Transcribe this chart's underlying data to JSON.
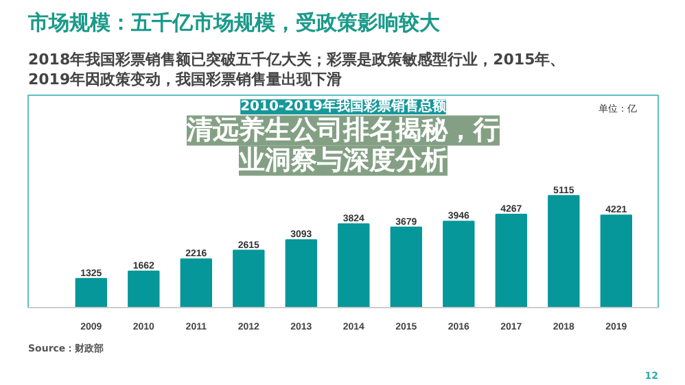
{
  "chart_data": {
    "type": "bar",
    "title": "市场规模：五千亿市场规模，受政策影响较大",
    "subtitle": "2018年我国彩票销售额已突破五千亿大关；彩票是政策敏感型行业，2015年、2019年因政策变动，我国彩票销售量出现下滑",
    "categories": [
      "2009",
      "2010",
      "2011",
      "2012",
      "2013",
      "2014",
      "2015",
      "2016",
      "2017",
      "2018",
      "2019"
    ],
    "values": [
      1325,
      1662,
      2216,
      2615,
      3093,
      3824,
      3679,
      3946,
      4267,
      5115,
      4221
    ],
    "color": "#06979a",
    "data_labels": true,
    "grid": false,
    "annotations": [
      "2010-2019年我国彩票销售总额",
      "单位：亿",
      "清远养生公司排名揭秘，行业洞察与深度分析",
      "Source：财政部",
      "12"
    ]
  }
}
